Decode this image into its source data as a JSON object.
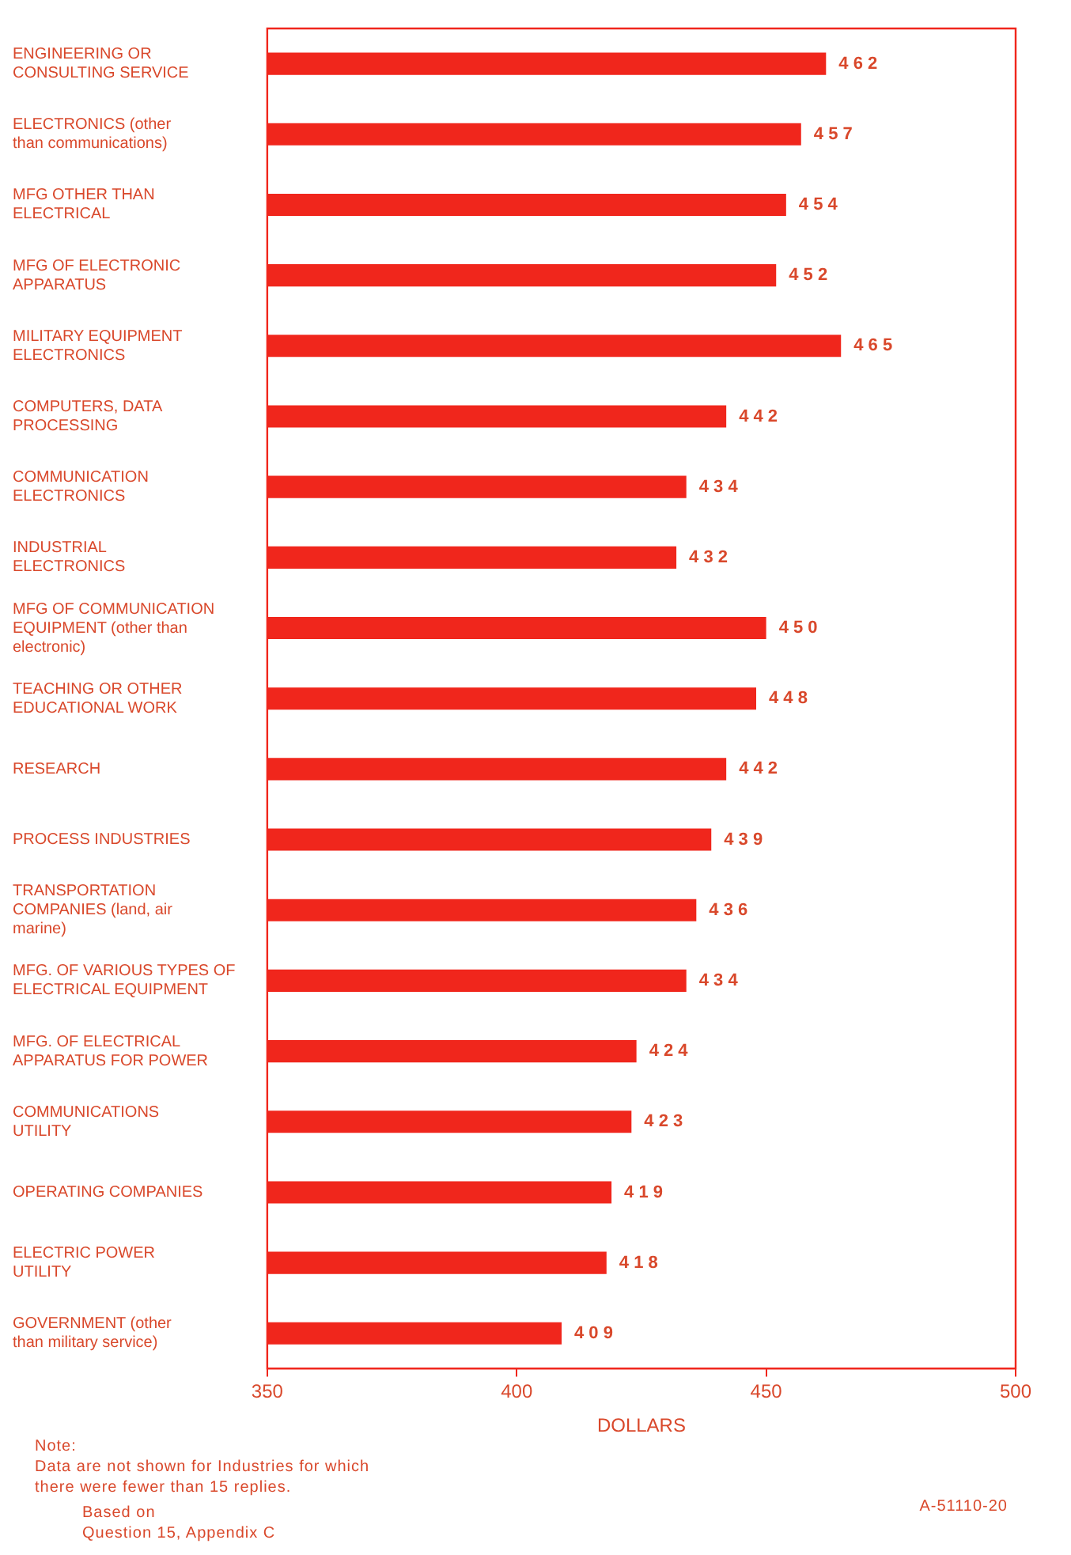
{
  "chart_data": {
    "type": "bar",
    "orientation": "horizontal",
    "xlabel": "DOLLARS",
    "categories": [
      "ENGINEERING OR\nCONSULTING SERVICE",
      "ELECTRONICS (other\nthan communications)",
      "MFG OTHER THAN\nELECTRICAL",
      "MFG OF ELECTRONIC\nAPPARATUS",
      "MILITARY EQUIPMENT\nELECTRONICS",
      "COMPUTERS, DATA\nPROCESSING",
      "COMMUNICATION\nELECTRONICS",
      "INDUSTRIAL\nELECTRONICS",
      "MFG OF COMMUNICATION\nEQUIPMENT (other than\nelectronic)",
      "TEACHING OR OTHER\nEDUCATIONAL WORK",
      "RESEARCH",
      "PROCESS INDUSTRIES",
      "TRANSPORTATION\nCOMPANIES (land, air\nmarine)",
      "MFG. OF VARIOUS TYPES OF\nELECTRICAL EQUIPMENT",
      "MFG. OF ELECTRICAL\nAPPARATUS FOR POWER",
      "COMMUNICATIONS\nUTILITY",
      "OPERATING COMPANIES",
      "ELECTRIC POWER\nUTILITY",
      "GOVERNMENT (other\nthan military service)"
    ],
    "values": [
      462,
      457,
      454,
      452,
      465,
      442,
      434,
      432,
      450,
      448,
      442,
      439,
      436,
      434,
      424,
      423,
      419,
      418,
      409
    ],
    "color": "#f0261c",
    "data_labels": true,
    "xlim": [
      350,
      500
    ],
    "xticks": [
      350,
      400,
      450,
      500
    ],
    "grid": false,
    "annotations": [
      "Note:\nData are not shown for Industries for which\nthere were fewer than 15 replies.",
      "Based on\nQuestion 15, Appendix C",
      "A-51110-20"
    ]
  }
}
